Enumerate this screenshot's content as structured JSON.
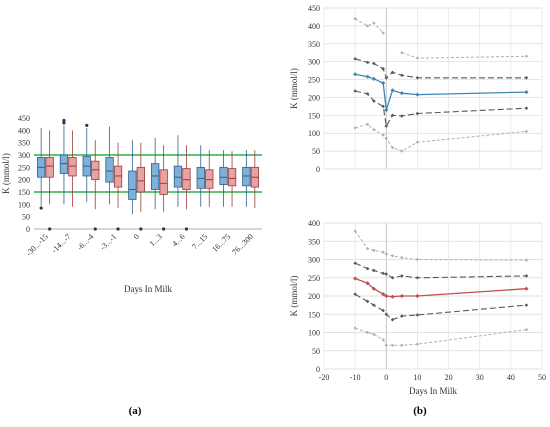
{
  "figure": {
    "panel_a_label": "(a)",
    "panel_b_label": "(b)"
  },
  "colors": {
    "blue": "#7fb0d8",
    "blue_line": "#3f86b8",
    "red": "#e8a2a2",
    "red_line": "#c0504d",
    "green": "#2db14a",
    "dark_dash": "#595959",
    "light_dash": "#b0b0b0"
  },
  "chart_data": [
    {
      "id": "a",
      "type": "box",
      "title": "",
      "xlabel": "Days In Milk",
      "ylabel": "K (mmol/l)",
      "ylim": [
        0,
        450
      ],
      "yticks": [
        0,
        50,
        100,
        150,
        200,
        250,
        300,
        350,
        400,
        450
      ],
      "reference_lines": [
        150,
        300
      ],
      "categories": [
        "-30...-15",
        "-14...-7",
        "-6...-4",
        "-3...-1",
        "0",
        "1...3",
        "4...6",
        "7...15",
        "16...75",
        "76...300"
      ],
      "series": [
        {
          "color": "blue",
          "boxes": [
            {
              "min": 95,
              "q1": 210,
              "median": 250,
              "q3": 290,
              "max": 410,
              "outliers": [
                85
              ]
            },
            {
              "min": 100,
              "q1": 225,
              "median": 265,
              "q3": 300,
              "max": 420,
              "outliers": [
                430,
                440
              ]
            },
            {
              "min": 110,
              "q1": 215,
              "median": 255,
              "q3": 295,
              "max": 410,
              "outliers": [
                420
              ]
            },
            {
              "min": 100,
              "q1": 190,
              "median": 235,
              "q3": 290,
              "max": 415,
              "outliers": []
            },
            {
              "min": 60,
              "q1": 120,
              "median": 160,
              "q3": 235,
              "max": 360,
              "outliers": []
            },
            {
              "min": 80,
              "q1": 160,
              "median": 215,
              "q3": 265,
              "max": 370,
              "outliers": []
            },
            {
              "min": 90,
              "q1": 170,
              "median": 210,
              "q3": 255,
              "max": 380,
              "outliers": []
            },
            {
              "min": 90,
              "q1": 165,
              "median": 205,
              "q3": 250,
              "max": 340,
              "outliers": []
            },
            {
              "min": 90,
              "q1": 180,
              "median": 210,
              "q3": 250,
              "max": 320,
              "outliers": []
            },
            {
              "min": 90,
              "q1": 175,
              "median": 215,
              "q3": 250,
              "max": 320,
              "outliers": []
            }
          ]
        },
        {
          "color": "red",
          "boxes": [
            {
              "min": 100,
              "q1": 210,
              "median": 255,
              "q3": 290,
              "max": 400,
              "outliers": [
                0
              ]
            },
            {
              "min": 90,
              "q1": 215,
              "median": 255,
              "q3": 290,
              "max": 400,
              "outliers": []
            },
            {
              "min": 80,
              "q1": 200,
              "median": 240,
              "q3": 275,
              "max": 360,
              "outliers": [
                0
              ]
            },
            {
              "min": 85,
              "q1": 170,
              "median": 215,
              "q3": 255,
              "max": 350,
              "outliers": [
                0
              ]
            },
            {
              "min": 70,
              "q1": 150,
              "median": 195,
              "q3": 250,
              "max": 350,
              "outliers": [
                0
              ]
            },
            {
              "min": 70,
              "q1": 140,
              "median": 185,
              "q3": 240,
              "max": 340,
              "outliers": [
                0
              ]
            },
            {
              "min": 80,
              "q1": 160,
              "median": 200,
              "q3": 245,
              "max": 340,
              "outliers": [
                0
              ]
            },
            {
              "min": 90,
              "q1": 165,
              "median": 200,
              "q3": 240,
              "max": 320,
              "outliers": []
            },
            {
              "min": 90,
              "q1": 175,
              "median": 205,
              "q3": 245,
              "max": 315,
              "outliers": []
            },
            {
              "min": 85,
              "q1": 170,
              "median": 210,
              "q3": 250,
              "max": 320,
              "outliers": []
            }
          ]
        }
      ]
    },
    {
      "id": "b-top",
      "type": "line",
      "title": "",
      "xlabel": "",
      "ylabel": "K (mmol/l)",
      "ylim": [
        0,
        450
      ],
      "yticks": [
        0,
        50,
        100,
        150,
        200,
        250,
        300,
        350,
        400,
        450
      ],
      "xlim": [
        -20,
        50
      ],
      "grid": true,
      "series": [
        {
          "style": "light_dash",
          "x": [
            -10,
            -6,
            -4,
            -1,
            0,
            5,
            10,
            45
          ],
          "y": [
            420,
            400,
            408,
            380,
            null,
            325,
            310,
            315
          ]
        },
        {
          "style": "dark_dash",
          "x": [
            -10,
            -6,
            -4,
            -1,
            0,
            2,
            5,
            10,
            45
          ],
          "y": [
            308,
            298,
            295,
            280,
            255,
            270,
            262,
            255,
            255
          ]
        },
        {
          "style": "main",
          "color": "blue_line",
          "x": [
            -10,
            -6,
            -4,
            -1,
            0,
            2,
            5,
            10,
            45
          ],
          "y": [
            265,
            258,
            252,
            240,
            165,
            220,
            212,
            208,
            215
          ]
        },
        {
          "style": "dark_dash",
          "x": [
            -10,
            -6,
            -4,
            -1,
            0,
            2,
            5,
            10,
            45
          ],
          "y": [
            218,
            210,
            190,
            175,
            120,
            150,
            148,
            155,
            170
          ]
        },
        {
          "style": "light_dash",
          "x": [
            -10,
            -6,
            -4,
            -1,
            0,
            2,
            5,
            10,
            45
          ],
          "y": [
            115,
            125,
            110,
            95,
            85,
            60,
            50,
            75,
            105
          ]
        }
      ]
    },
    {
      "id": "b-bottom",
      "type": "line",
      "title": "",
      "xlabel": "Days In Milk",
      "ylabel": "K (mmol/l)",
      "ylim": [
        0,
        400
      ],
      "yticks": [
        0,
        50,
        100,
        150,
        200,
        250,
        300,
        350,
        400
      ],
      "xlim": [
        -20,
        50
      ],
      "xticks": [
        -20,
        -10,
        0,
        10,
        20,
        30,
        40,
        50
      ],
      "grid": true,
      "series": [
        {
          "style": "light_dash",
          "x": [
            -10,
            -6,
            -4,
            -1,
            0,
            2,
            5,
            10,
            45
          ],
          "y": [
            378,
            330,
            325,
            320,
            315,
            310,
            305,
            300,
            298
          ]
        },
        {
          "style": "dark_dash",
          "x": [
            -10,
            -6,
            -4,
            -1,
            0,
            2,
            5,
            10,
            45
          ],
          "y": [
            290,
            275,
            270,
            262,
            260,
            250,
            255,
            250,
            255
          ]
        },
        {
          "style": "main",
          "color": "red_line",
          "x": [
            -10,
            -6,
            -4,
            -1,
            0,
            2,
            5,
            10,
            45
          ],
          "y": [
            248,
            235,
            220,
            205,
            200,
            198,
            200,
            200,
            220
          ]
        },
        {
          "style": "dark_dash",
          "x": [
            -10,
            -6,
            -4,
            -1,
            0,
            2,
            5,
            10,
            45
          ],
          "y": [
            205,
            185,
            175,
            160,
            150,
            135,
            145,
            148,
            175
          ]
        },
        {
          "style": "light_dash",
          "x": [
            -10,
            -6,
            -4,
            -1,
            0,
            2,
            5,
            10,
            45
          ],
          "y": [
            112,
            100,
            95,
            80,
            65,
            65,
            65,
            68,
            108
          ]
        }
      ]
    }
  ]
}
